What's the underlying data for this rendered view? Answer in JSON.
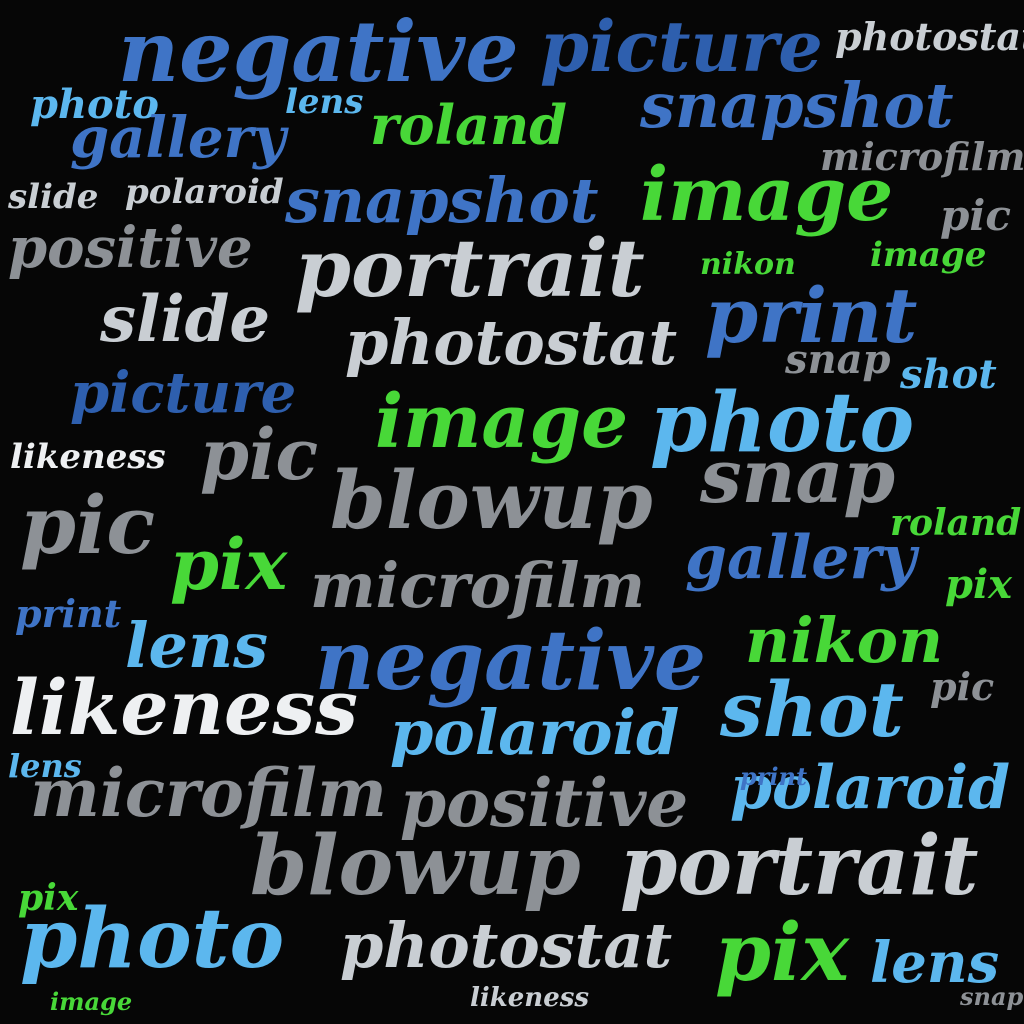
{
  "colors": {
    "background": "#060606",
    "blue": "#3f74c6",
    "dark_blue": "#2e5fae",
    "light_blue": "#5cb7ee",
    "green": "#48d838",
    "gray": "#8d9196",
    "silver": "#c9ced3",
    "white": "#eef0f2"
  },
  "words": [
    "negative",
    "picture",
    "photostat",
    "snapshot",
    "photo",
    "lens",
    "roland",
    "gallery",
    "microfilm",
    "image",
    "polaroid",
    "snapshot",
    "slide",
    "pic",
    "positive",
    "portrait",
    "print",
    "image",
    "nikon",
    "slide",
    "photostat",
    "snap",
    "shot",
    "picture",
    "image",
    "photo",
    "likeness",
    "pic",
    "blowup",
    "snap",
    "pic",
    "roland",
    "pix",
    "gallery",
    "pix",
    "microfilm",
    "print",
    "nikon",
    "lens",
    "negative",
    "likeness",
    "shot",
    "polaroid",
    "pic",
    "microfilm",
    "positive",
    "polaroid",
    "lens",
    "blowup",
    "portrait",
    "photo",
    "photostat",
    "pix",
    "lens",
    "likeness",
    "image",
    "print",
    "pix",
    "snap"
  ]
}
